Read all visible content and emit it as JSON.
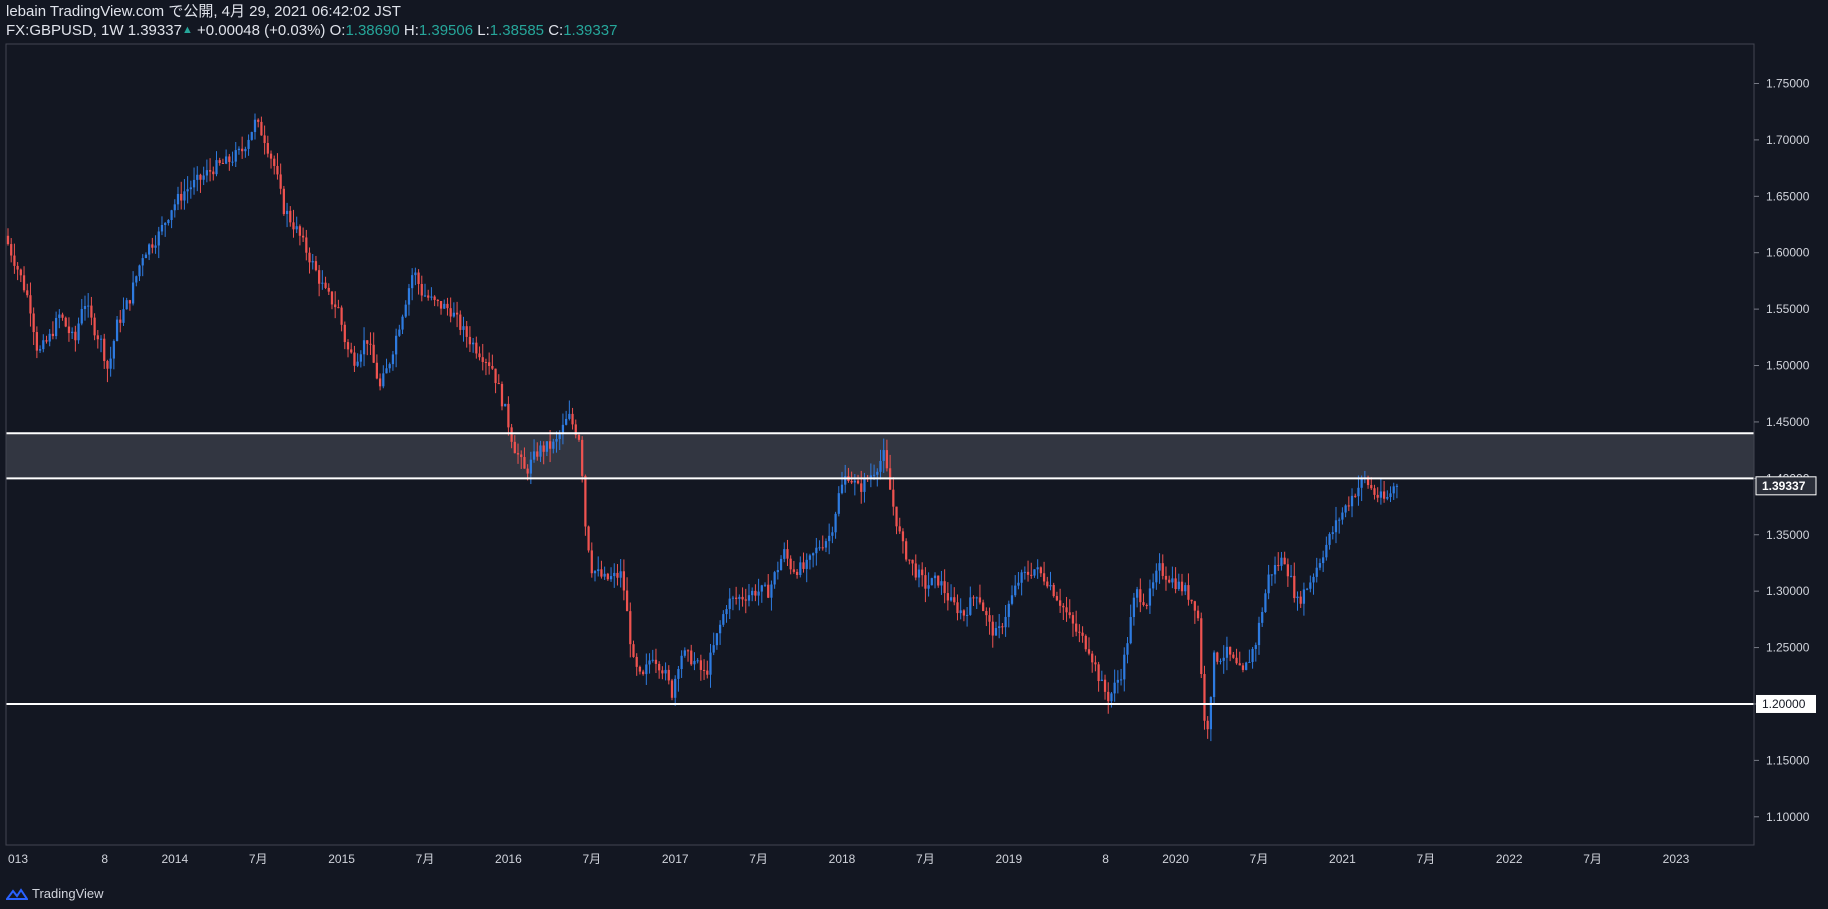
{
  "header": {
    "published": "lebain TradingView.com で公開, 4月 29, 2021 06:42:02 JST",
    "symbol": "FX:GBPUSD, 1W",
    "last": "1.39337",
    "change_arrow": "▲",
    "change": "+0.00048 (+0.03%)",
    "o_label": "O:",
    "o": "1.38690",
    "h_label": "H:",
    "h": "1.39506",
    "l_label": "L:",
    "l": "1.38585",
    "c_label": "C:",
    "c": "1.39337"
  },
  "footer": {
    "brand": "TradingView"
  },
  "colors": {
    "background": "#131722",
    "up": "#2e7be0",
    "down": "#ef5350",
    "axis_text": "#d1d4dc",
    "zone": "#363a45",
    "lines": "#ffffff"
  },
  "chart_data": {
    "type": "candlestick",
    "title": "",
    "xlabel": "",
    "ylabel": "",
    "ylim": [
      1.075,
      1.785
    ],
    "xlim": [
      2013.0,
      2023.5
    ],
    "grid": false,
    "y_ticks": [
      1.1,
      1.15,
      1.2,
      1.25,
      1.3,
      1.35,
      1.4,
      1.45,
      1.5,
      1.55,
      1.6,
      1.65,
      1.7,
      1.75
    ],
    "y_tick_labels": [
      "1.10000",
      "1.15000",
      "1.20000",
      "1.25000",
      "1.30000",
      "1.35000",
      "1.40000",
      "1.45000",
      "1.50000",
      "1.55000",
      "1.60000",
      "1.65000",
      "1.70000",
      "1.75000"
    ],
    "x_ticks": [
      {
        "t": 2013.0,
        "label": "013"
      },
      {
        "t": 2013.58,
        "label": "8"
      },
      {
        "t": 2014.0,
        "label": "2014"
      },
      {
        "t": 2014.5,
        "label": "7月"
      },
      {
        "t": 2015.0,
        "label": "2015"
      },
      {
        "t": 2015.5,
        "label": "7月"
      },
      {
        "t": 2016.0,
        "label": "2016"
      },
      {
        "t": 2016.5,
        "label": "7月"
      },
      {
        "t": 2017.0,
        "label": "2017"
      },
      {
        "t": 2017.5,
        "label": "7月"
      },
      {
        "t": 2018.0,
        "label": "2018"
      },
      {
        "t": 2018.5,
        "label": "7月"
      },
      {
        "t": 2019.0,
        "label": "2019"
      },
      {
        "t": 2019.58,
        "label": "8"
      },
      {
        "t": 2020.0,
        "label": "2020"
      },
      {
        "t": 2020.5,
        "label": "7月"
      },
      {
        "t": 2021.0,
        "label": "2021"
      },
      {
        "t": 2021.5,
        "label": "7月"
      },
      {
        "t": 2022.0,
        "label": "2022"
      },
      {
        "t": 2022.5,
        "label": "7月"
      },
      {
        "t": 2023.0,
        "label": "2023"
      }
    ],
    "price_path": [
      [
        2013.0,
        1.615
      ],
      [
        2013.08,
        1.585
      ],
      [
        2013.15,
        1.555
      ],
      [
        2013.2,
        1.51
      ],
      [
        2013.27,
        1.525
      ],
      [
        2013.33,
        1.545
      ],
      [
        2013.42,
        1.52
      ],
      [
        2013.47,
        1.56
      ],
      [
        2013.53,
        1.535
      ],
      [
        2013.58,
        1.52
      ],
      [
        2013.62,
        1.495
      ],
      [
        2013.67,
        1.535
      ],
      [
        2013.75,
        1.56
      ],
      [
        2013.83,
        1.6
      ],
      [
        2013.92,
        1.615
      ],
      [
        2014.0,
        1.64
      ],
      [
        2014.08,
        1.655
      ],
      [
        2014.17,
        1.665
      ],
      [
        2014.25,
        1.675
      ],
      [
        2014.33,
        1.68
      ],
      [
        2014.42,
        1.69
      ],
      [
        2014.5,
        1.715
      ],
      [
        2014.55,
        1.705
      ],
      [
        2014.62,
        1.675
      ],
      [
        2014.67,
        1.64
      ],
      [
        2014.75,
        1.62
      ],
      [
        2014.83,
        1.595
      ],
      [
        2014.92,
        1.565
      ],
      [
        2015.0,
        1.55
      ],
      [
        2015.05,
        1.515
      ],
      [
        2015.1,
        1.505
      ],
      [
        2015.17,
        1.525
      ],
      [
        2015.25,
        1.48
      ],
      [
        2015.3,
        1.5
      ],
      [
        2015.38,
        1.545
      ],
      [
        2015.45,
        1.585
      ],
      [
        2015.5,
        1.565
      ],
      [
        2015.58,
        1.555
      ],
      [
        2015.67,
        1.55
      ],
      [
        2015.75,
        1.53
      ],
      [
        2015.83,
        1.515
      ],
      [
        2015.92,
        1.5
      ],
      [
        2016.0,
        1.46
      ],
      [
        2016.05,
        1.43
      ],
      [
        2016.12,
        1.405
      ],
      [
        2016.2,
        1.425
      ],
      [
        2016.3,
        1.43
      ],
      [
        2016.38,
        1.455
      ],
      [
        2016.45,
        1.435
      ],
      [
        2016.48,
        1.36
      ],
      [
        2016.52,
        1.32
      ],
      [
        2016.6,
        1.31
      ],
      [
        2016.7,
        1.315
      ],
      [
        2016.77,
        1.235
      ],
      [
        2016.82,
        1.22
      ],
      [
        2016.88,
        1.245
      ],
      [
        2016.95,
        1.23
      ],
      [
        2017.0,
        1.21
      ],
      [
        2017.05,
        1.245
      ],
      [
        2017.12,
        1.24
      ],
      [
        2017.2,
        1.225
      ],
      [
        2017.27,
        1.26
      ],
      [
        2017.33,
        1.29
      ],
      [
        2017.42,
        1.295
      ],
      [
        2017.5,
        1.3
      ],
      [
        2017.58,
        1.3
      ],
      [
        2017.67,
        1.335
      ],
      [
        2017.72,
        1.32
      ],
      [
        2017.8,
        1.32
      ],
      [
        2017.88,
        1.34
      ],
      [
        2017.95,
        1.35
      ],
      [
        2018.0,
        1.385
      ],
      [
        2018.05,
        1.405
      ],
      [
        2018.12,
        1.39
      ],
      [
        2018.2,
        1.405
      ],
      [
        2018.27,
        1.42
      ],
      [
        2018.32,
        1.38
      ],
      [
        2018.38,
        1.34
      ],
      [
        2018.45,
        1.32
      ],
      [
        2018.52,
        1.305
      ],
      [
        2018.6,
        1.31
      ],
      [
        2018.67,
        1.29
      ],
      [
        2018.75,
        1.28
      ],
      [
        2018.83,
        1.3
      ],
      [
        2018.9,
        1.27
      ],
      [
        2018.95,
        1.26
      ],
      [
        2019.0,
        1.28
      ],
      [
        2019.08,
        1.31
      ],
      [
        2019.17,
        1.32
      ],
      [
        2019.25,
        1.31
      ],
      [
        2019.33,
        1.29
      ],
      [
        2019.42,
        1.265
      ],
      [
        2019.5,
        1.25
      ],
      [
        2019.58,
        1.215
      ],
      [
        2019.62,
        1.205
      ],
      [
        2019.7,
        1.23
      ],
      [
        2019.78,
        1.3
      ],
      [
        2019.85,
        1.29
      ],
      [
        2019.92,
        1.32
      ],
      [
        2020.0,
        1.31
      ],
      [
        2020.08,
        1.3
      ],
      [
        2020.15,
        1.285
      ],
      [
        2020.2,
        1.165
      ],
      [
        2020.25,
        1.24
      ],
      [
        2020.33,
        1.245
      ],
      [
        2020.42,
        1.225
      ],
      [
        2020.5,
        1.255
      ],
      [
        2020.58,
        1.315
      ],
      [
        2020.67,
        1.33
      ],
      [
        2020.75,
        1.29
      ],
      [
        2020.83,
        1.31
      ],
      [
        2020.92,
        1.34
      ],
      [
        2021.0,
        1.365
      ],
      [
        2021.08,
        1.385
      ],
      [
        2021.15,
        1.4
      ],
      [
        2021.22,
        1.385
      ],
      [
        2021.28,
        1.38
      ],
      [
        2021.33,
        1.39337
      ]
    ],
    "annotations": [
      {
        "type": "zone",
        "from": 1.4,
        "to": 1.44
      },
      {
        "type": "hline",
        "y": 1.2
      }
    ],
    "last_price_label": "1.39337",
    "level_label": "1.20000"
  }
}
